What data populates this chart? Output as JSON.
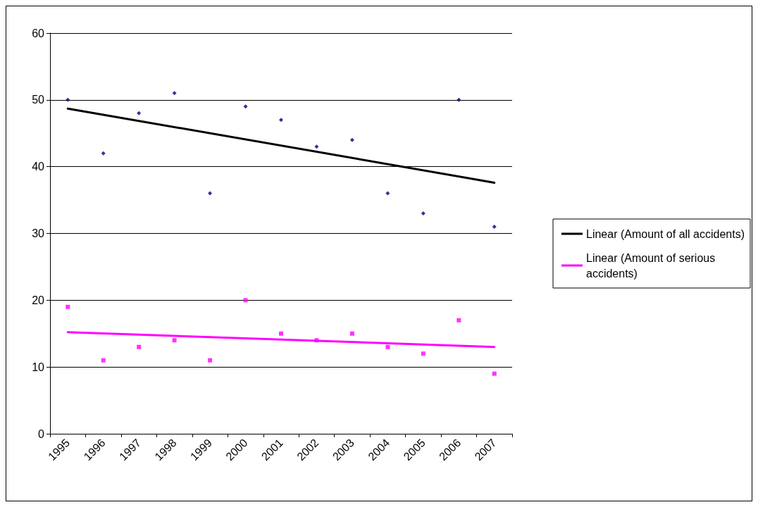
{
  "chart_data": {
    "type": "scatter",
    "categories": [
      "1995",
      "1996",
      "1997",
      "1998",
      "1999",
      "2000",
      "2001",
      "2002",
      "2003",
      "2004",
      "2005",
      "2006",
      "2007"
    ],
    "series": [
      {
        "color": "#000080",
        "marker": "diamond",
        "values": [
          50,
          42,
          48,
          51,
          36,
          49,
          47,
          43,
          44,
          36,
          33,
          50,
          31
        ]
      },
      {
        "color": "#ff00ff",
        "marker": "square",
        "values": [
          19,
          11,
          13,
          14,
          11,
          20,
          15,
          14,
          15,
          13,
          12,
          17,
          9
        ]
      },
      {
        "type": "line",
        "name": "Linear (Amount of all accidents)",
        "color": "#000000",
        "values": [
          48.7,
          null,
          null,
          null,
          null,
          null,
          null,
          null,
          null,
          null,
          null,
          null,
          37.6
        ]
      },
      {
        "type": "line",
        "name": "Linear (Amount of serious accidents)",
        "color": "#ff00ff",
        "values": [
          15.2,
          null,
          null,
          null,
          null,
          null,
          null,
          null,
          null,
          null,
          null,
          null,
          13.0
        ]
      }
    ],
    "ylim": [
      0,
      60
    ],
    "yticks": [
      0,
      10,
      20,
      30,
      40,
      50,
      60
    ],
    "grid": "y",
    "legend": "right",
    "line_style": "solid"
  }
}
